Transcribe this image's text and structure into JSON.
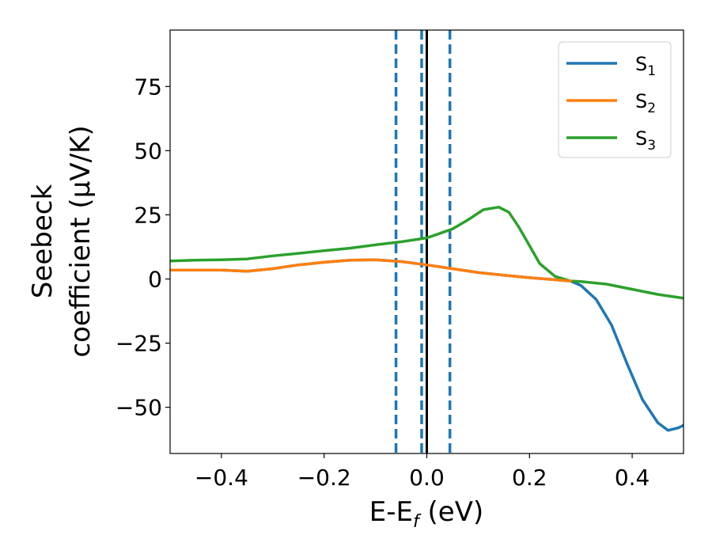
{
  "chart_data": {
    "type": "line",
    "xlabel": "E-E",
    "xlabel_sub": "f",
    "xlabel_unit": " (eV)",
    "ylabel_line1": "Seebeck",
    "ylabel_line2": "coefficient  (μV/K)",
    "xlim": [
      -0.5,
      0.5
    ],
    "ylim": [
      -68,
      97
    ],
    "xticks": [
      -0.4,
      -0.2,
      0.0,
      0.2,
      0.4
    ],
    "xtick_labels": [
      "−0.4",
      "−0.2",
      "0.0",
      "0.2",
      "0.4"
    ],
    "yticks": [
      -50,
      -25,
      0,
      25,
      50,
      75
    ],
    "ytick_labels": [
      "−50",
      "−25",
      "0",
      "25",
      "50",
      "75"
    ],
    "grid": false,
    "legend_position": "top-right",
    "series": [
      {
        "name": "S",
        "sub": "1",
        "color": "#1f77b4",
        "x": [
          -0.5,
          -0.4,
          -0.35,
          -0.3,
          -0.25,
          -0.2,
          -0.15,
          -0.1,
          -0.05,
          0.0,
          0.05,
          0.1,
          0.15,
          0.2,
          0.25,
          0.28,
          0.3,
          0.33,
          0.36,
          0.39,
          0.42,
          0.45,
          0.47,
          0.49,
          0.5
        ],
        "y": [
          3.5,
          3.5,
          3.0,
          4.0,
          5.5,
          6.5,
          7.3,
          7.5,
          6.8,
          5.5,
          4.0,
          2.5,
          1.5,
          0.5,
          -0.3,
          -0.8,
          -2.5,
          -8.0,
          -18.0,
          -33.0,
          -47.0,
          -56.0,
          -59.0,
          -58.0,
          -57.0
        ]
      },
      {
        "name": "S",
        "sub": "2",
        "color": "#ff7f0e",
        "x": [
          -0.5,
          -0.4,
          -0.35,
          -0.3,
          -0.25,
          -0.2,
          -0.15,
          -0.1,
          -0.05,
          0.0,
          0.05,
          0.1,
          0.15,
          0.2,
          0.25,
          0.28
        ],
        "y": [
          3.5,
          3.5,
          3.0,
          4.0,
          5.5,
          6.5,
          7.3,
          7.5,
          6.8,
          5.5,
          4.0,
          2.5,
          1.5,
          0.5,
          -0.3,
          -0.8
        ]
      },
      {
        "name": "S",
        "sub": "3",
        "color": "#2ca02c",
        "x": [
          -0.5,
          -0.45,
          -0.4,
          -0.35,
          -0.3,
          -0.25,
          -0.2,
          -0.15,
          -0.1,
          -0.05,
          0.0,
          0.05,
          0.08,
          0.11,
          0.14,
          0.16,
          0.18,
          0.2,
          0.22,
          0.25,
          0.28,
          0.3,
          0.35,
          0.4,
          0.45,
          0.5
        ],
        "y": [
          7.0,
          7.3,
          7.5,
          7.8,
          9.0,
          10.0,
          11.0,
          12.0,
          13.3,
          14.5,
          16.0,
          19.5,
          23.0,
          27.0,
          28.0,
          26.0,
          20.0,
          13.0,
          6.0,
          1.0,
          -0.8,
          -1.0,
          -2.0,
          -4.0,
          -6.0,
          -7.5
        ]
      }
    ],
    "vlines": [
      {
        "x": -0.06,
        "style": "dashed",
        "color": "#1f77b4"
      },
      {
        "x": -0.01,
        "style": "dashed",
        "color": "#1f77b4"
      },
      {
        "x": 0.045,
        "style": "dashed",
        "color": "#1f77b4"
      },
      {
        "x": 0.0,
        "style": "solid",
        "color": "#000000"
      }
    ]
  }
}
